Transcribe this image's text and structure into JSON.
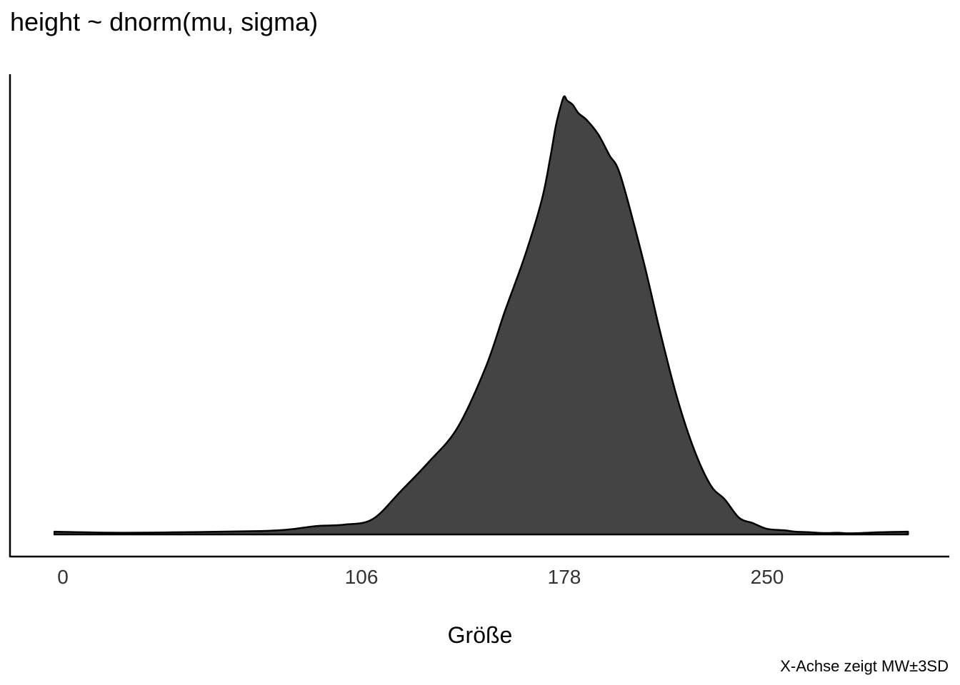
{
  "chart_data": {
    "type": "area",
    "title": "height ~ dnorm(mu, sigma)",
    "xlabel": "Größe",
    "ylabel": "",
    "caption": "X-Achse zeigt MW±3SD",
    "x_ticks": [
      0,
      106,
      178,
      250
    ],
    "xlim": [
      -3,
      300
    ],
    "grid": false,
    "legend": "none",
    "fill_color": "#444444",
    "line_color": "#000000",
    "series": [
      {
        "x": [
          -3,
          20,
          50,
          70,
          80,
          90,
          100,
          110,
          120,
          130,
          140,
          150,
          157,
          164,
          170,
          173,
          175,
          177,
          178,
          179,
          181,
          183,
          186,
          190,
          194,
          198,
          206,
          212,
          218,
          224,
          230,
          235,
          240,
          245,
          250,
          256,
          260,
          265,
          270,
          275,
          280,
          290,
          300
        ],
        "y": [
          0.0002,
          0.00012,
          0.00018,
          0.00024,
          0.00035,
          0.0006,
          0.0007,
          0.0011,
          0.0031,
          0.0052,
          0.0076,
          0.0119,
          0.016,
          0.0199,
          0.0239,
          0.0269,
          0.0292,
          0.0308,
          0.0313,
          0.031,
          0.0307,
          0.0301,
          0.0296,
          0.0286,
          0.0271,
          0.0256,
          0.0196,
          0.0145,
          0.0098,
          0.0061,
          0.0035,
          0.0025,
          0.0012,
          0.0008,
          0.0004,
          0.0003,
          0.0002,
          0.00016,
          0.0001,
          0.00012,
          8e-05,
          0.00016,
          0.0002
        ],
        "fill": "#444444"
      }
    ]
  }
}
